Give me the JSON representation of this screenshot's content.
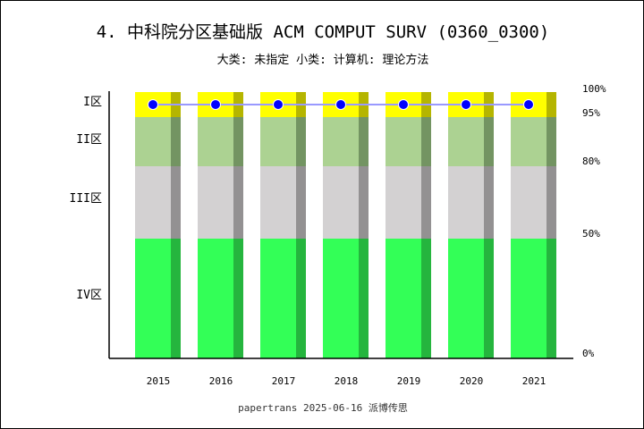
{
  "title": "4. 中科院分区基础版 ACM COMPUT SURV (0360_0300)",
  "subtitle": "大类: 未指定 小类: 计算机: 理论方法",
  "footer": "papertrans 2025-06-16 派博传思",
  "chart_data": {
    "type": "bar",
    "categories": [
      "2015",
      "2016",
      "2017",
      "2018",
      "2019",
      "2020",
      "2021"
    ],
    "zones": [
      {
        "label": "I区",
        "from": 95,
        "to": 100,
        "color": "#ffff00",
        "shade": "#b5b500"
      },
      {
        "label": "II区",
        "from": 80,
        "to": 95,
        "color": "#acd292",
        "shade": "#739462"
      },
      {
        "label": "III区",
        "from": 50,
        "to": 80,
        "color": "#d3d1d2",
        "shade": "#939192"
      },
      {
        "label": "IV区",
        "from": 0,
        "to": 50,
        "color": "#33ff57",
        "shade": "#25b53e"
      }
    ],
    "right_ticks": [
      "100%",
      "95%",
      "80%",
      "50%",
      "0%"
    ],
    "series": [
      {
        "values": [
          97.5,
          97.5,
          97.5,
          97.5,
          97.5,
          97.5,
          97.5
        ],
        "color": "#0000ff",
        "line_color": "#9999ff"
      }
    ]
  }
}
